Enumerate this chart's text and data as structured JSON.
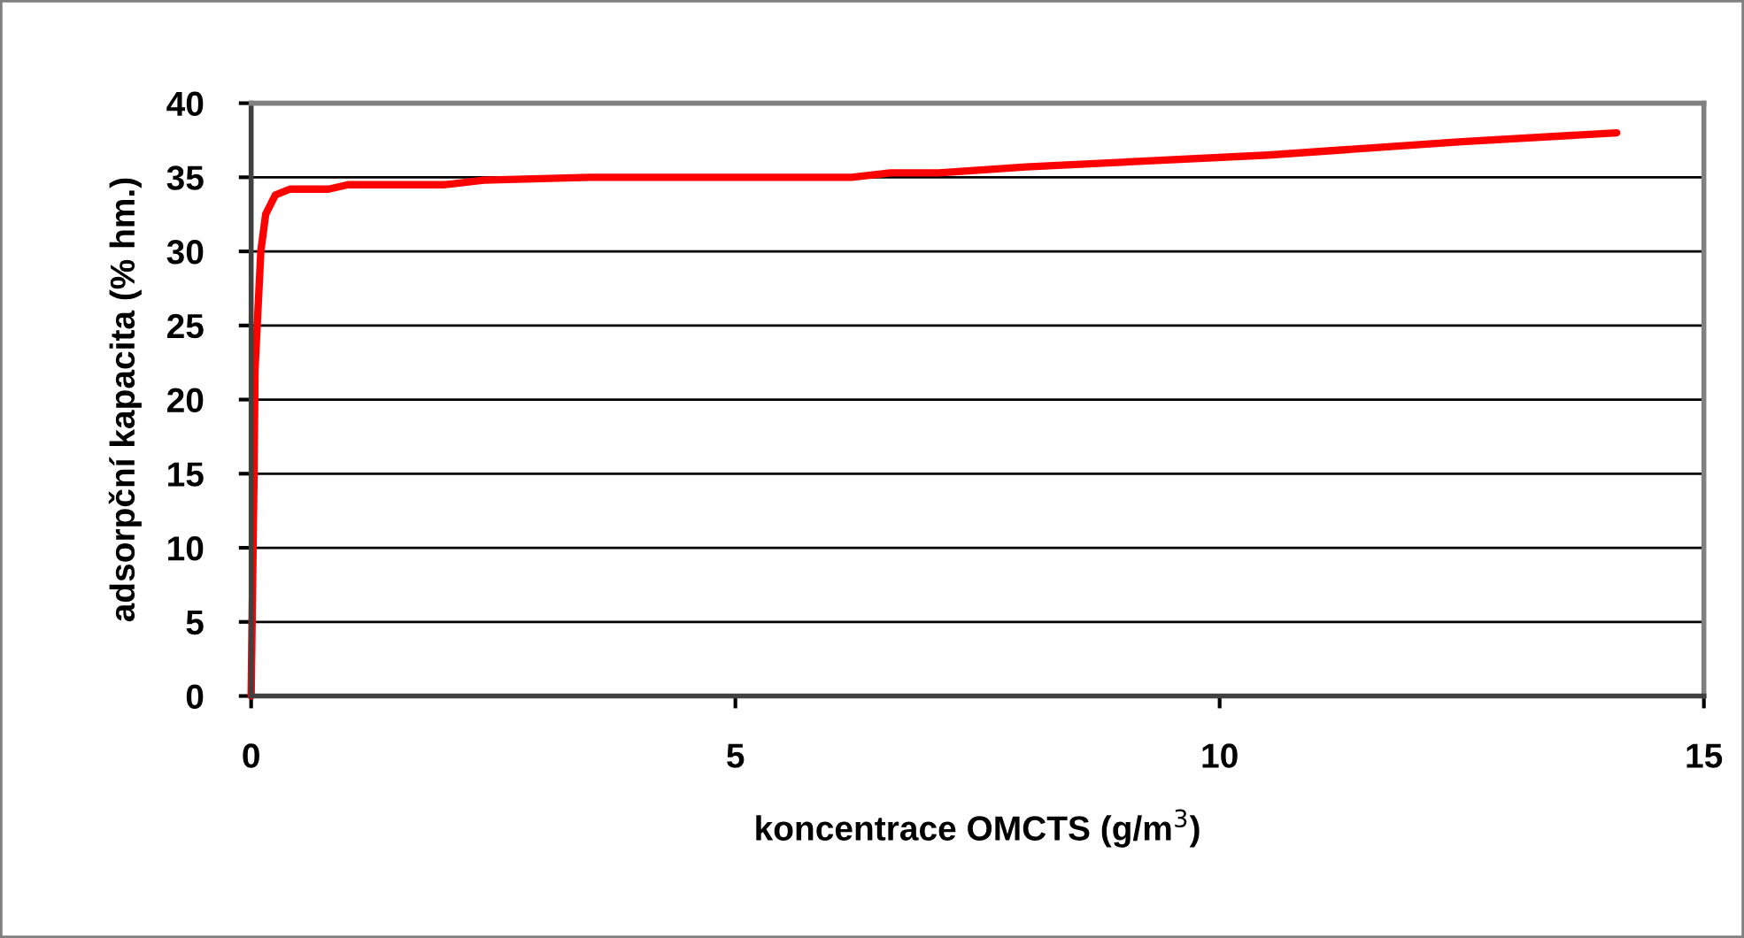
{
  "chart_data": {
    "type": "line",
    "xlabel": "koncentrace OMCTS (g/m$^{3}$)",
    "ylabel": "adsorpční kapacita (% hm.)",
    "series": [
      {
        "color": "#ff0000",
        "x": [
          0,
          0.01,
          0.02,
          0.03,
          0.04,
          0.1,
          0.15,
          0.25,
          0.4,
          0.8,
          1,
          2,
          2.4,
          3.5,
          6.2,
          6.6,
          7.1,
          8,
          10.5,
          12.5,
          14.1
        ],
        "values": [
          0,
          5,
          10,
          15,
          22,
          30,
          32.5,
          33.8,
          34.2,
          34.2,
          34.5,
          34.5,
          34.8,
          35,
          35,
          35.3,
          35.3,
          35.7,
          36.5,
          37.4,
          38
        ]
      }
    ],
    "xlim": [
      0,
      15
    ],
    "xticks": [
      0,
      5,
      10,
      15
    ],
    "ylim": [
      0,
      40
    ],
    "yticks": [
      0,
      5,
      10,
      15,
      20,
      25,
      30,
      35,
      40
    ],
    "grid": "y",
    "marker": "none",
    "line_style": "solid"
  }
}
